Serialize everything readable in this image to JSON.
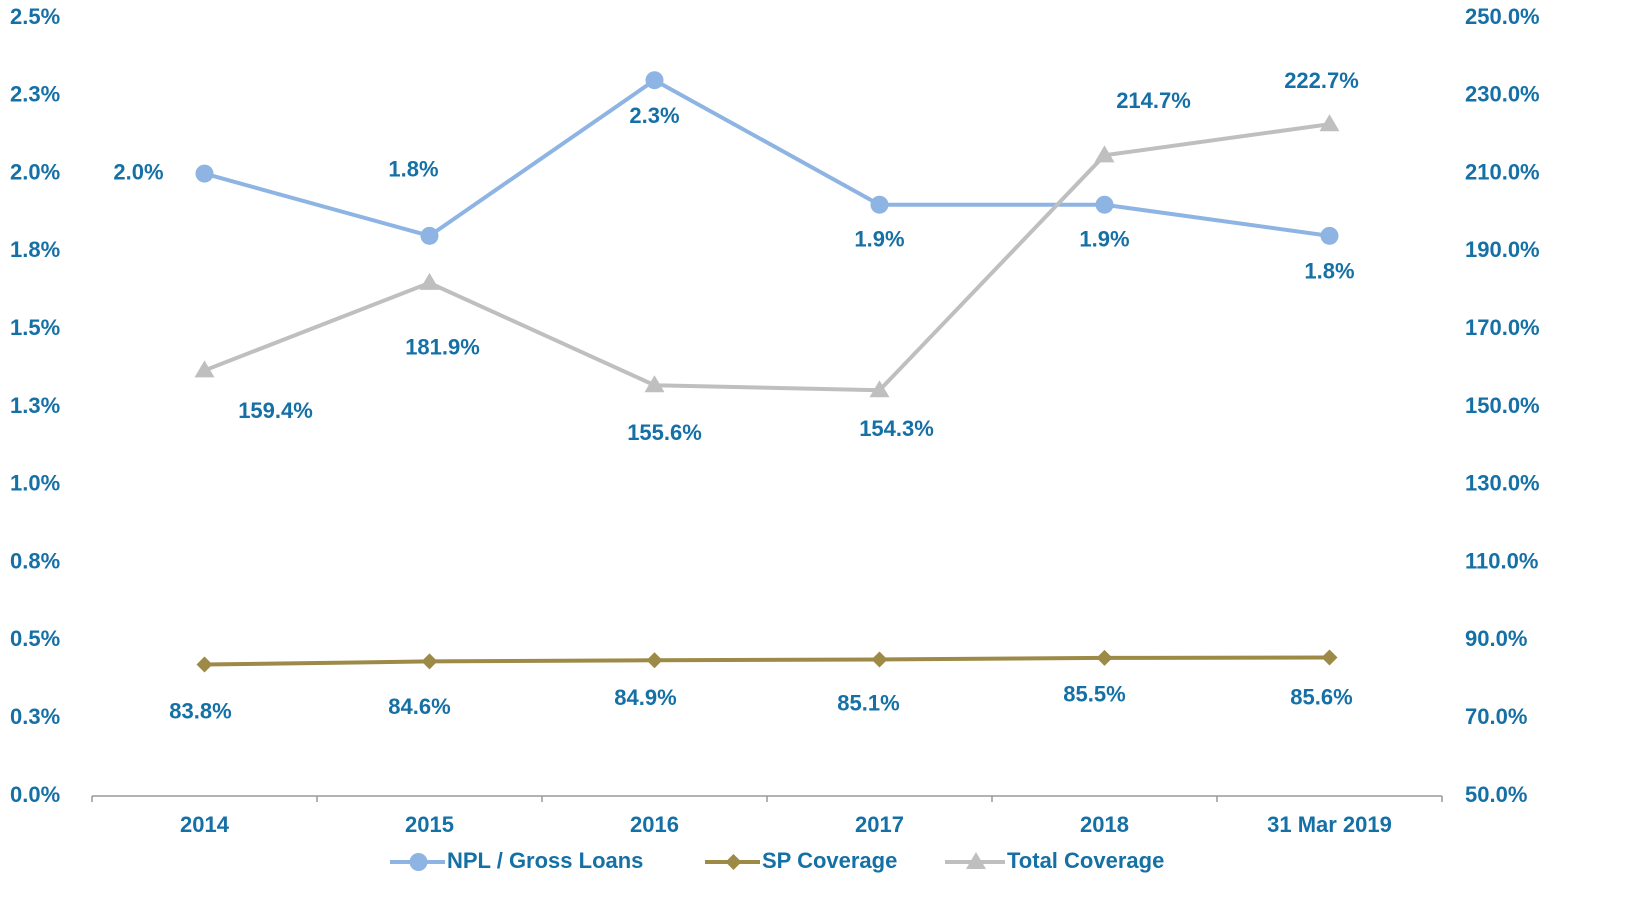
{
  "chart_data": {
    "type": "line",
    "categories": [
      "2014",
      "2015",
      "2016",
      "2017",
      "2018",
      "31 Mar 2019"
    ],
    "series": [
      {
        "name": "NPL / Gross Loans",
        "color": "#8eb4e3",
        "marker": "circle",
        "axis": "y",
        "values": [
          2.0,
          1.8,
          2.3,
          1.9,
          1.9,
          1.8
        ],
        "value_labels": [
          "2.0%",
          "1.8%",
          "2.3%",
          "1.9%",
          "1.9%",
          "1.8%"
        ]
      },
      {
        "name": "SP Coverage",
        "color": "#9c8a46",
        "marker": "diamond",
        "axis": "y2",
        "values": [
          83.8,
          84.6,
          84.9,
          85.1,
          85.5,
          85.6
        ],
        "value_labels": [
          "83.8%",
          "84.6%",
          "84.9%",
          "85.1%",
          "85.5%",
          "85.6%"
        ]
      },
      {
        "name": "Total Coverage",
        "color": "#bfbfbf",
        "marker": "triangle",
        "axis": "y2",
        "values": [
          159.4,
          181.9,
          155.6,
          154.3,
          214.7,
          222.7
        ],
        "value_labels": [
          "159.4%",
          "181.9%",
          "155.6%",
          "154.3%",
          "214.7%",
          "222.7%"
        ]
      }
    ],
    "ylim": [
      0,
      2.5
    ],
    "yticks": [
      {
        "value": 0,
        "label": "0.0%"
      },
      {
        "value": 0.25,
        "label": "0.3%"
      },
      {
        "value": 0.5,
        "label": "0.5%"
      },
      {
        "value": 0.75,
        "label": "0.8%"
      },
      {
        "value": 1.0,
        "label": "1.0%"
      },
      {
        "value": 1.25,
        "label": "1.3%"
      },
      {
        "value": 1.5,
        "label": "1.5%"
      },
      {
        "value": 1.75,
        "label": "1.8%"
      },
      {
        "value": 2.0,
        "label": "2.0%"
      },
      {
        "value": 2.25,
        "label": "2.3%"
      },
      {
        "value": 2.5,
        "label": "2.5%"
      }
    ],
    "y2lim": [
      50,
      250
    ],
    "y2ticks": [
      {
        "value": 50,
        "label": "50.0%"
      },
      {
        "value": 70,
        "label": "70.0%"
      },
      {
        "value": 90,
        "label": "90.0%"
      },
      {
        "value": 110,
        "label": "110.0%"
      },
      {
        "value": 130,
        "label": "130.0%"
      },
      {
        "value": 150,
        "label": "150.0%"
      },
      {
        "value": 170,
        "label": "170.0%"
      },
      {
        "value": 190,
        "label": "190.0%"
      },
      {
        "value": 210,
        "label": "210.0%"
      },
      {
        "value": 230,
        "label": "230.0%"
      },
      {
        "value": 250,
        "label": "250.0%"
      }
    ],
    "legend": "bottom",
    "grid": false
  }
}
